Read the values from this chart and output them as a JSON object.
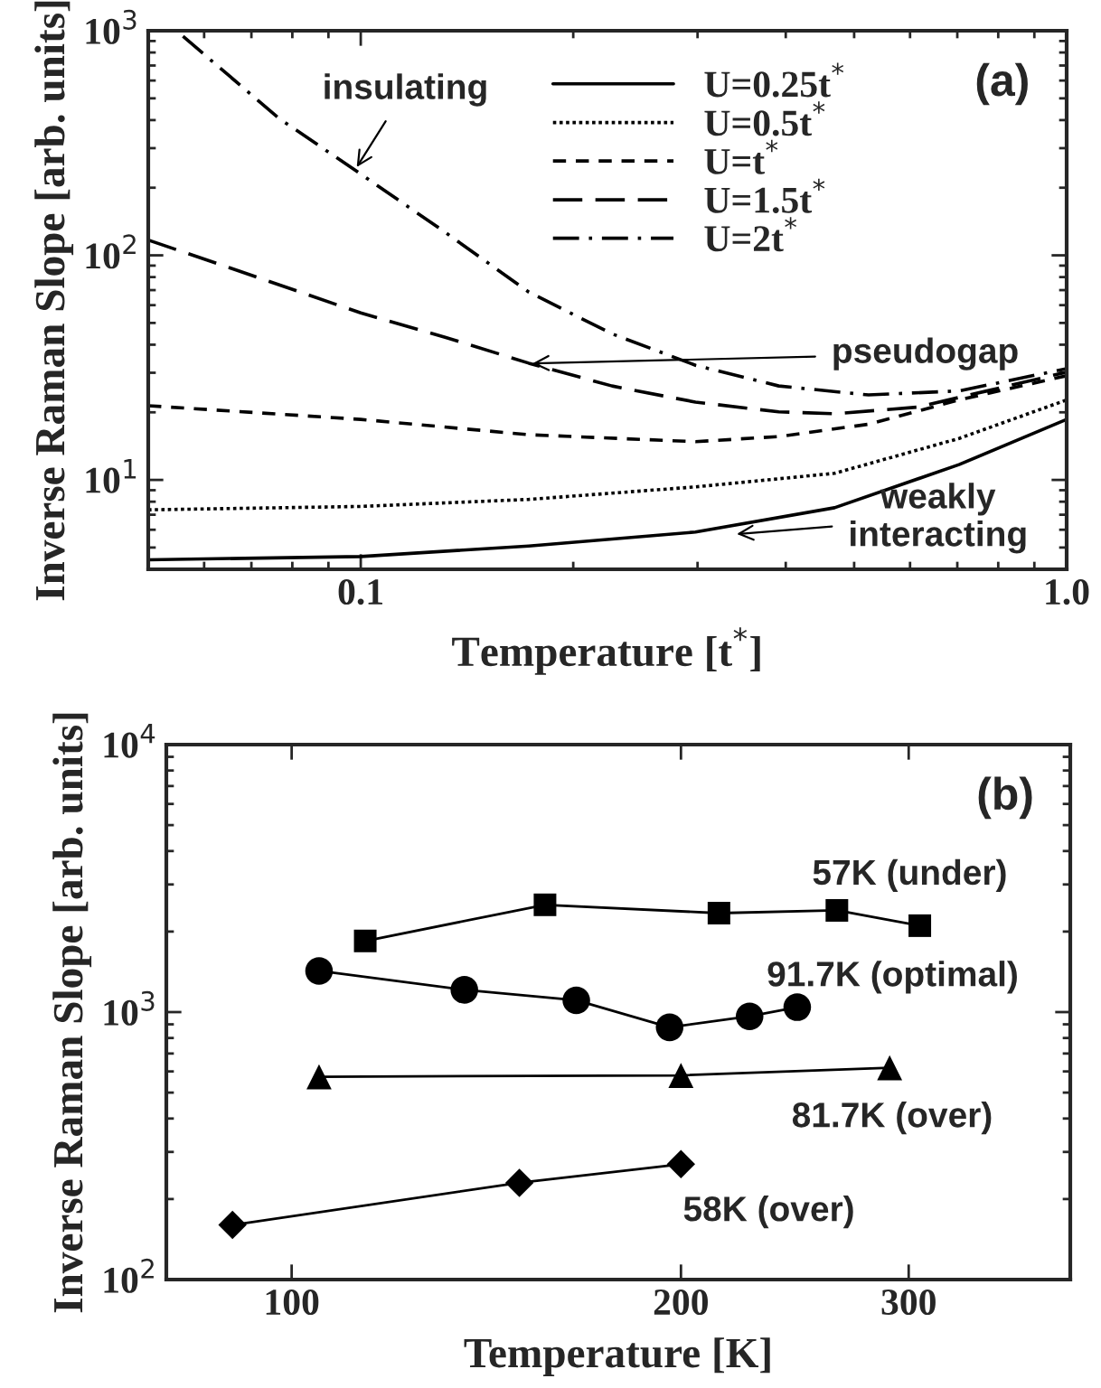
{
  "chart_data": [
    {
      "type": "line",
      "xlabel": "Temperature [t$^{*}$]",
      "ylabel": "Inverse Raman Slope [arb. units]",
      "log": "xy",
      "xlim": [
        0.05,
        1.0
      ],
      "ylim": [
        4,
        1000
      ],
      "xticks": [
        0.1,
        {
          "value": 1.0,
          "label": "1.0"
        }
      ],
      "yticks": [
        {
          "value": 10,
          "label": "10$^{1}$"
        },
        {
          "value": 100,
          "label": "10$^{2}$"
        },
        {
          "value": 1000,
          "label": "10$^{3}$"
        }
      ],
      "grid": false,
      "legend": "top",
      "marker": "none",
      "series": [
        {
          "name": "U=0.25t$^{*}$",
          "color": "#000000",
          "line_style": "solid",
          "x": [
            0.05,
            0.1,
            0.173,
            0.298,
            0.469,
            0.704,
            1.0
          ],
          "values": [
            4.41,
            4.56,
            5.08,
            5.86,
            7.52,
            11.7,
            18.6
          ]
        },
        {
          "name": "U=0.5t$^{*}$",
          "color": "#000000",
          "line_style": "dotted",
          "x": [
            0.05,
            0.1,
            0.173,
            0.298,
            0.469,
            0.704,
            1.0
          ],
          "values": [
            7.36,
            7.62,
            8.19,
            9.31,
            10.7,
            15.3,
            22.7
          ]
        },
        {
          "name": "U=t$^{*}$",
          "color": "#000000",
          "line_style": "dashed",
          "x": [
            0.05,
            0.1,
            0.173,
            0.298,
            0.391,
            0.524,
            0.704,
            1.0
          ],
          "values": [
            21.4,
            18.6,
            15.9,
            14.8,
            15.6,
            17.7,
            22.7,
            29.1
          ]
        },
        {
          "name": "U=1.5t$^{*}$",
          "color": "#000000",
          "line_style": "longdash",
          "x": [
            0.05,
            0.0653,
            0.1,
            0.132,
            0.173,
            0.227,
            0.298,
            0.391,
            0.469,
            0.615,
            0.771,
            1.0
          ],
          "values": [
            117,
            87.9,
            55.4,
            43.1,
            33.1,
            26.2,
            22.2,
            20.1,
            19.7,
            21.1,
            24.9,
            30.2
          ]
        },
        {
          "name": "U=2t$^{*}$",
          "color": "#000000",
          "line_style": "dashdot",
          "x": [
            0.056,
            0.0653,
            0.0766,
            0.1,
            0.132,
            0.173,
            0.227,
            0.298,
            0.391,
            0.524,
            0.704,
            1.0
          ],
          "values": [
            944,
            625,
            407,
            230,
            126,
            68.6,
            44.7,
            32.4,
            26.2,
            23.9,
            24.9,
            31.3
          ]
        }
      ],
      "annotations": [
        "(a)",
        {
          "text": "insulating",
          "x": 0.0987,
          "y": 247
        },
        {
          "text": "pseudogap",
          "x": 0.175,
          "y": 33
        },
        {
          "text": "weakly\ninteracting",
          "x": 0.341,
          "y": 5.74
        }
      ]
    },
    {
      "type": "line",
      "xlabel": "Temperature [K]",
      "ylabel": "Inverse Raman Slope [arb. units]",
      "log": "xy",
      "xlim": [
        80,
        400
      ],
      "ylim": [
        100,
        10000
      ],
      "xticks": [
        100,
        200,
        300
      ],
      "yticks": [
        {
          "value": 100,
          "label": "10$^{2}$"
        },
        {
          "value": 1000,
          "label": "10$^{3}$"
        },
        {
          "value": 10000,
          "label": "10$^{4}$"
        }
      ],
      "grid": false,
      "legend": false,
      "series": [
        {
          "name": "57K (under)",
          "color": "#000000",
          "marker": "square",
          "x": [
            114,
            157,
            214,
            264,
            306
          ],
          "values": [
            1845,
            2518,
            2344,
            2400,
            2104
          ]
        },
        {
          "name": "91.7K (optimal)",
          "color": "#000000",
          "marker": "circle",
          "x": [
            105,
            136,
            166,
            196,
            226,
            246
          ],
          "values": [
            1425,
            1211,
            1107,
            877,
            964,
            1043
          ]
        },
        {
          "name": "81.7K (over)",
          "color": "#000000",
          "marker": "triangle",
          "x": [
            105,
            200,
            290
          ],
          "values": [
            573,
            580,
            619
          ]
        },
        {
          "name": "58K (over)",
          "color": "#000000",
          "marker": "diamond",
          "x": [
            90,
            150,
            200
          ],
          "values": [
            160,
            230,
            270
          ]
        }
      ],
      "annotations": [
        "(b)"
      ]
    }
  ]
}
